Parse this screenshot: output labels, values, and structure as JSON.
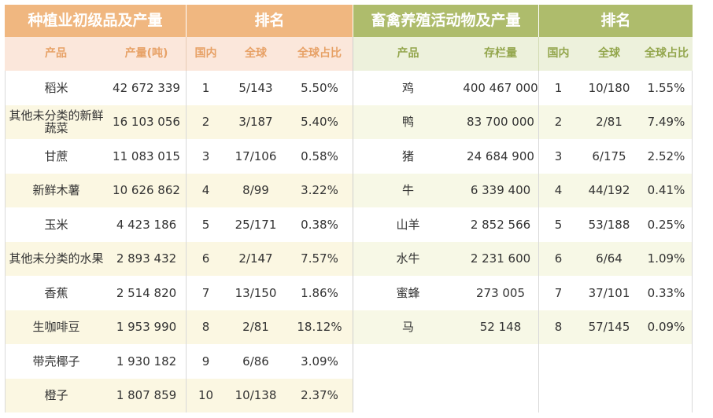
{
  "left_header": {
    "title": "种植业初级品及产量",
    "rank": "排名"
  },
  "right_header": {
    "title": "畜禽养殖活动物及产量",
    "rank": "排名"
  },
  "left_cols": [
    "产品",
    "产量(吨)",
    "国内",
    "全球",
    "全球占比"
  ],
  "right_cols": [
    "产品",
    "存栏量",
    "国内",
    "全球",
    "全球占比"
  ],
  "left_rows": [
    {
      "product": "稻米",
      "qty": "42 672 339",
      "domestic": "1",
      "global": "5/143",
      "share": "5.50%"
    },
    {
      "product": "其他未分类的新鲜蔬菜",
      "qty": "16 103 056",
      "domestic": "2",
      "global": "3/187",
      "share": "5.40%"
    },
    {
      "product": "甘蔗",
      "qty": "11 083 015",
      "domestic": "3",
      "global": "17/106",
      "share": "0.58%"
    },
    {
      "product": "新鲜木薯",
      "qty": "10 626 862",
      "domestic": "4",
      "global": "8/99",
      "share": "3.22%"
    },
    {
      "product": "玉米",
      "qty": "4 423 186",
      "domestic": "5",
      "global": "25/171",
      "share": "0.38%"
    },
    {
      "product": "其他未分类的水果",
      "qty": "2 893 432",
      "domestic": "6",
      "global": "2/147",
      "share": "7.57%"
    },
    {
      "product": "香蕉",
      "qty": "2 514 820",
      "domestic": "7",
      "global": "13/150",
      "share": "1.86%"
    },
    {
      "product": "生咖啡豆",
      "qty": "1 953 990",
      "domestic": "8",
      "global": "2/81",
      "share": "18.12%"
    },
    {
      "product": "带壳椰子",
      "qty": "1 930 182",
      "domestic": "9",
      "global": "6/86",
      "share": "3.09%"
    },
    {
      "product": "橙子",
      "qty": "1 807 859",
      "domestic": "10",
      "global": "10/138",
      "share": "2.37%"
    }
  ],
  "right_rows": [
    {
      "product": "鸡",
      "qty": "400 467 000",
      "domestic": "1",
      "global": "10/180",
      "share": "1.55%"
    },
    {
      "product": "鸭",
      "qty": "83 700 000",
      "domestic": "2",
      "global": "2/81",
      "share": "7.49%"
    },
    {
      "product": "猪",
      "qty": "24 684 900",
      "domestic": "3",
      "global": "6/175",
      "share": "2.52%"
    },
    {
      "product": "牛",
      "qty": "6 339 400",
      "domestic": "4",
      "global": "44/192",
      "share": "0.41%"
    },
    {
      "product": "山羊",
      "qty": "2 852 566",
      "domestic": "5",
      "global": "53/188",
      "share": "0.25%"
    },
    {
      "product": "水牛",
      "qty": "2 231 600",
      "domestic": "6",
      "global": "6/64",
      "share": "1.09%"
    },
    {
      "product": "蜜蜂",
      "qty": "273 005",
      "domestic": "7",
      "global": "37/101",
      "share": "0.33%"
    },
    {
      "product": "马",
      "qty": "52 148",
      "domestic": "8",
      "global": "57/145",
      "share": "0.09%"
    }
  ]
}
